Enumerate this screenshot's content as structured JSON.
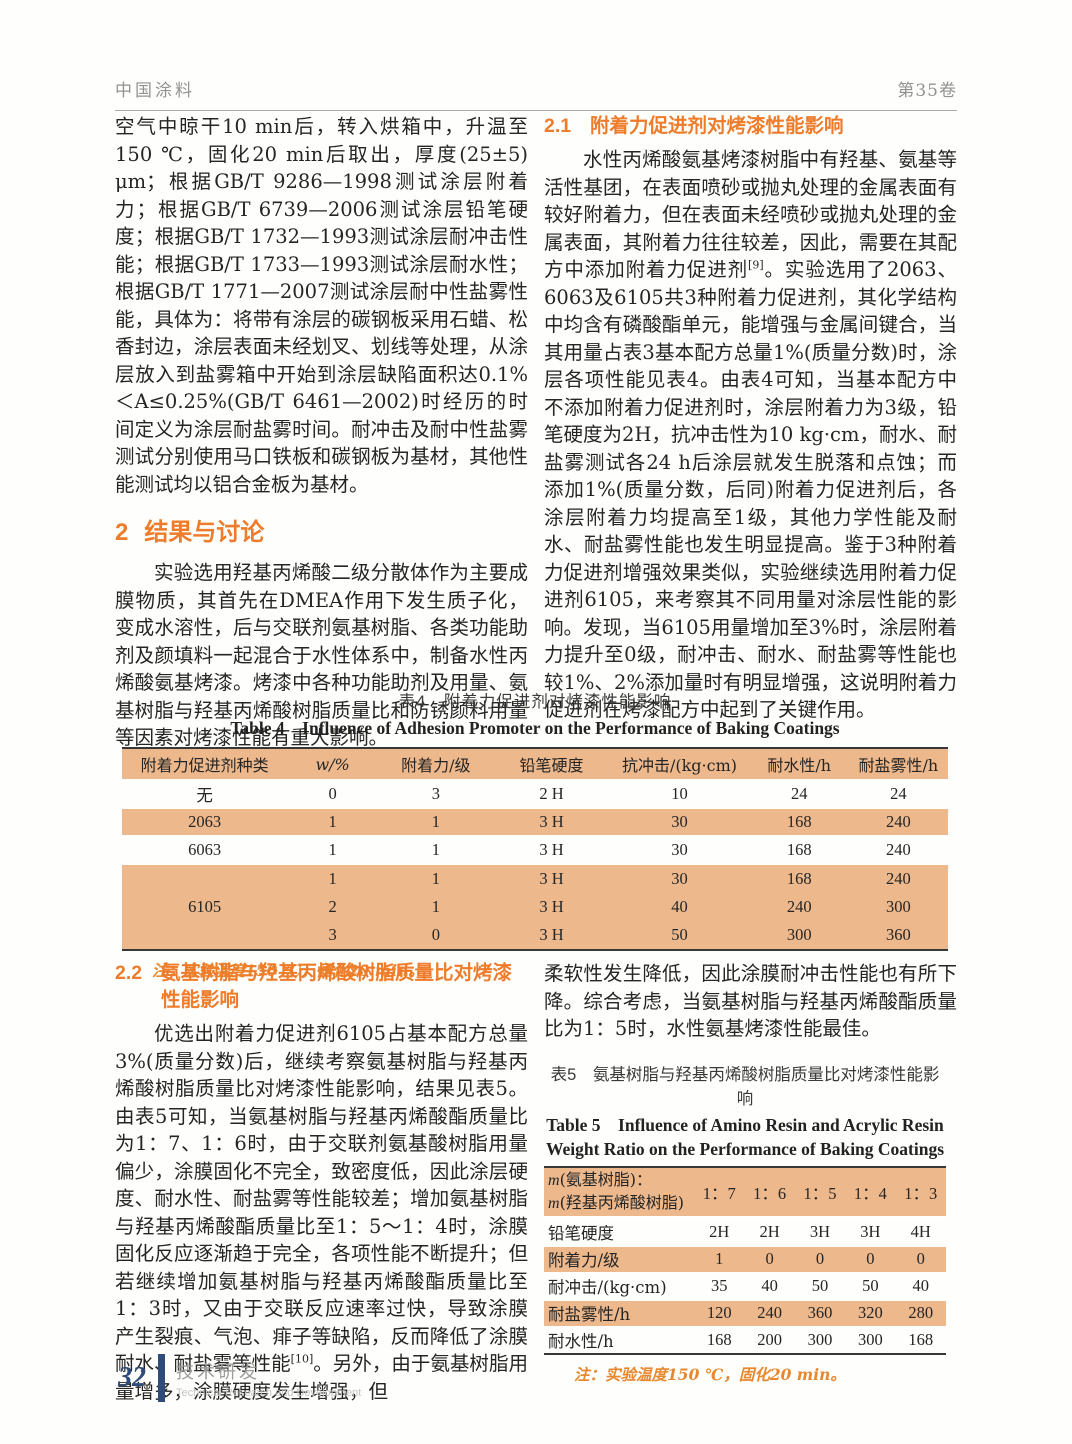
{
  "runhead": {
    "journal": "中国涂料",
    "volume": "第35卷"
  },
  "colors": {
    "accent_orange": "#ee7c2a",
    "table_row_orange": "#edb88c",
    "note_orange": "#e8882e",
    "footer_blue": "#2e4b7a"
  },
  "left_top": {
    "paragraph_continue": "空气中晾干10 min后，转入烘箱中，升温至150 ℃，固化20 min后取出，厚度(25±5) μm；根据GB/T 9286—1998测试涂层附着力；根据GB/T 6739—2006测试涂层铅笔硬度；根据GB/T 1732—1993测试涂层耐冲击性能；根据GB/T 1733—1993测试涂层耐水性；根据GB/T 1771—2007测试涂层耐中性盐雾性能，具体为：将带有涂层的碳钢板采用石蜡、松香封边，涂层表面未经划叉、划线等处理，从涂层放入到盐雾箱中开始到涂层缺陷面积达0.1%＜A≤0.25%(GB/T 6461—2002)时经历的时间定义为涂层耐盐雾时间。耐冲击及耐中性盐雾测试分别使用马口铁板和碳钢板为基材，其他性能测试均以铝合金板为基材。",
    "section2_number": "2",
    "section2_title": "结果与讨论",
    "paragraph_2": "实验选用羟基丙烯酸二级分散体作为主要成膜物质，其首先在DMEA作用下发生质子化，变成水溶性，后与交联剂氨基树脂、各类功能助剂及颜填料一起混合于水性体系中，制备水性丙烯酸氨基烤漆。烤漆中各种功能助剂及用量、氨基树脂与羟基丙烯酸树脂质量比和防锈颜料用量等因素对烤漆性能有重大影响。"
  },
  "right_top": {
    "section21_number": "2.1",
    "section21_title": "附着力促进剂对烤漆性能影响",
    "para_a": "水性丙烯酸氨基烤漆树脂中有羟基、氨基等活性基团，在表面喷砂或抛丸处理的金属表面有较好附着力，但在表面未经喷砂或抛丸处理的金属表面，其附着力往往较差，因此，需要在其配方中添加附着力促进剂",
    "para_sup": "[9]",
    "para_b": "。实验选用了2063、6063及6105共3种附着力促进剂，其化学结构中均含有磷酸酯单元，能增强与金属间键合，当其用量占表3基本配方总量1%(质量分数)时，涂层各项性能见表4。由表4可知，当基本配方中不添加附着力促进剂时，涂层附着力为3级，铅笔硬度为2H，抗冲击性为10 kg·cm，耐水、耐盐雾测试各24 h后涂层就发生脱落和点蚀；而添加1%(质量分数，后同)附着力促进剂后，各涂层附着力均提高至1级，其他力学性能及耐水、耐盐雾性能也发生明显提高。鉴于3种附着力促进剂增强效果类似，实验继续选用附着力促进剂6105，来考察其不同用量对涂层性能的影响。发现，当6105用量增加至3%时，涂层附着力提升至0级，耐冲击、耐水、耐盐雾等性能也较1%、2%添加量时有明显增强，这说明附着力促进剂在烤漆配方中起到了关键作用。"
  },
  "table4": {
    "caption_cn": "表4　附着力促进剂对烤漆性能影响",
    "caption_en": "Table 4　Influence of Adhesion Promoter on the Performance of Baking Coatings",
    "headers": [
      "附着力促进剂种类",
      "w/%",
      "附着力/级",
      "铅笔硬度",
      "抗冲击/(kg·cm)",
      "耐水性/h",
      "耐盐雾性/h"
    ],
    "simple_rows": [
      {
        "type": "无",
        "w": "0",
        "adhesion": "3",
        "hardness": "2 H",
        "impact": "10",
        "water": "24",
        "salt": "24"
      },
      {
        "type": "2063",
        "w": "1",
        "adhesion": "1",
        "hardness": "3 H",
        "impact": "30",
        "water": "168",
        "salt": "240"
      },
      {
        "type": "6063",
        "w": "1",
        "adhesion": "1",
        "hardness": "3 H",
        "impact": "30",
        "water": "168",
        "salt": "240"
      }
    ],
    "group_row": {
      "type": "6105",
      "sub_rows": [
        {
          "w": "1",
          "adhesion": "1",
          "hardness": "3 H",
          "impact": "30",
          "water": "168",
          "salt": "240"
        },
        {
          "w": "2",
          "adhesion": "1",
          "hardness": "3 H",
          "impact": "40",
          "water": "240",
          "salt": "300"
        },
        {
          "w": "3",
          "adhesion": "0",
          "hardness": "3 H",
          "impact": "50",
          "water": "300",
          "salt": "360"
        }
      ]
    },
    "note": "注：实验温度150 ℃，固化20 min。"
  },
  "left_bottom": {
    "section22_number": "2.2",
    "section22_title": "氨基树脂与羟基丙烯酸树脂质量比对烤漆性能影响",
    "para_a": "优选出附着力促进剂6105占基本配方总量3%(质量分数)后，继续考察氨基树脂与羟基丙烯酸树脂质量比对烤漆性能影响，结果见表5。由表5可知，当氨基树脂与羟基丙烯酸酯质量比为1：7、1：6时，由于交联剂氨基酸树脂用量偏少，涂膜固化不完全，致密度低，因此涂层硬度、耐水性、耐盐雾等性能较差；增加氨基树脂与羟基丙烯酸酯质量比至1：5～1：4时，涂膜固化反应逐渐趋于完全，各项性能不断提升；但若继续增加氨基树脂与羟基丙烯酸酯质量比至1：3时，又由于交联反应速率过快，导致涂膜产生裂痕、气泡、痱子等缺陷，反而降低了涂膜耐水、耐盐雾等性能",
    "para_sup": "[10]",
    "para_b": "。另外，由于氨基树脂用量增多，涂膜硬度发生增强，但"
  },
  "right_bottom": {
    "para_continue": "柔软性发生降低，因此涂膜耐冲击性能也有所下降。综合考虑，当氨基树脂与羟基丙烯酸酯质量比为1：5时，水性氨基烤漆性能最佳。"
  },
  "table5": {
    "caption_cn": "表5　氨基树脂与羟基丙烯酸树脂质量比对烤漆性能影响",
    "caption_en_line1": "Table 5　Influence of Amino Resin and Acrylic Resin",
    "caption_en_line2": "Weight Ratio on the Performance of Baking Coatings",
    "ratio_label_italic1": "m",
    "ratio_label_text1": "(氨基树脂)：",
    "ratio_label_italic2": "m",
    "ratio_label_text2": "(羟基丙烯酸树脂)",
    "ratios": [
      "1：7",
      "1：6",
      "1：5",
      "1：4",
      "1：3"
    ],
    "rows": [
      {
        "label": "铅笔硬度",
        "values": [
          "2H",
          "2H",
          "3H",
          "3H",
          "4H"
        ]
      },
      {
        "label": "附着力/级",
        "values": [
          "1",
          "0",
          "0",
          "0",
          "0"
        ]
      },
      {
        "label": "耐冲击/(kg·cm)",
        "values": [
          "35",
          "40",
          "50",
          "50",
          "40"
        ]
      },
      {
        "label": "耐盐雾性/h",
        "values": [
          "120",
          "240",
          "360",
          "320",
          "280"
        ]
      },
      {
        "label": "耐水性/h",
        "values": [
          "168",
          "200",
          "300",
          "300",
          "168"
        ]
      }
    ],
    "note": "注：实验温度150 ℃，固化20 min。"
  },
  "footer": {
    "page_number": "32",
    "section_cn": "技术研发",
    "section_en": "Technical Research and Development"
  }
}
